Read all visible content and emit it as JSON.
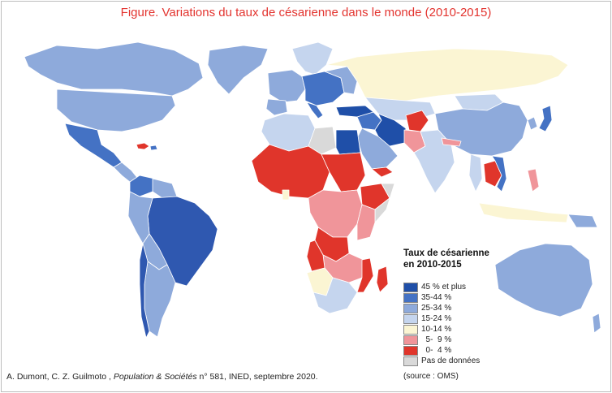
{
  "title": "Figure. Variations du taux de césarienne dans le monde (2010-2015)",
  "legend": {
    "title_line1": "Taux de césarienne",
    "title_line2": "en 2010-2015",
    "items": [
      {
        "label": "45 % et plus",
        "color": "#1f4fa8"
      },
      {
        "label": "35-44 %",
        "color": "#4472c4"
      },
      {
        "label": "25-34 %",
        "color": "#8eaadb"
      },
      {
        "label": "15-24 %",
        "color": "#c5d5ee"
      },
      {
        "label": "10-14 %",
        "color": "#fbf5d3"
      },
      {
        "label": "  5-  9 %",
        "color": "#f0959a"
      },
      {
        "label": "  0-  4 %",
        "color": "#e0352b"
      },
      {
        "label": "Pas de données",
        "color": "#d9d9d9"
      }
    ]
  },
  "credit": {
    "authors": "A. Dumont, C. Z. Guilmoto ,",
    "journal": "Population & Sociétés",
    "rest": "n° 581, INED, septembre 2020."
  },
  "source": "(source : OMS)"
}
